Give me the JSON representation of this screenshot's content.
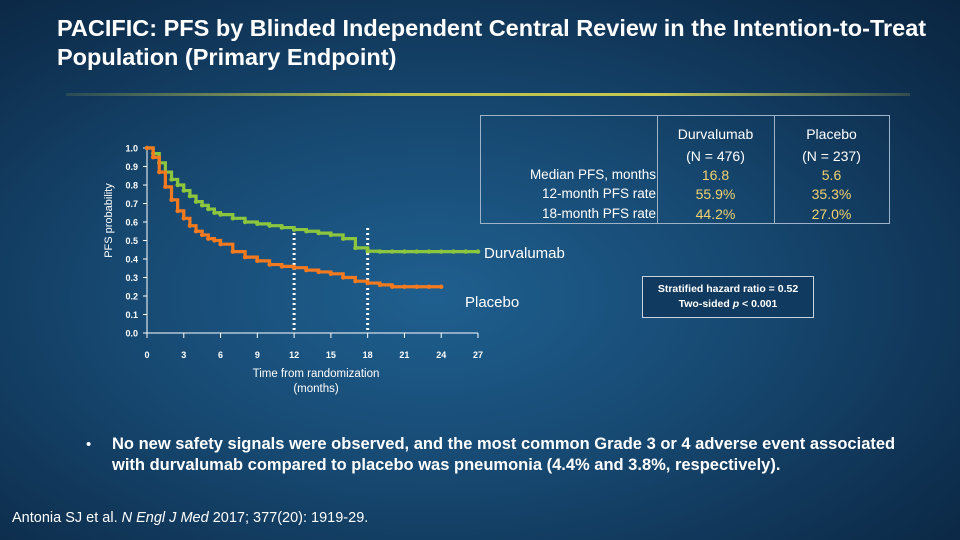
{
  "title": "PACIFIC: PFS by Blinded Independent Central Review in the Intention-to-Treat Population (Primary Endpoint)",
  "table": {
    "headers": [
      {
        "lines": [
          "Durvalumab",
          "(N = 476)"
        ]
      },
      {
        "lines": [
          "Placebo",
          "(N = 237)"
        ]
      }
    ],
    "rows": [
      {
        "label": "Median PFS, months",
        "durvalumab": "16.8",
        "placebo": "5.6"
      },
      {
        "label": "12-month PFS rate",
        "durvalumab": "55.9%",
        "placebo": "35.3%"
      },
      {
        "label": "18-month PFS rate",
        "durvalumab": "44.2%",
        "placebo": "27.0%"
      }
    ]
  },
  "hazard": {
    "line1": "Stratified hazard ratio = 0.52",
    "line2_prefix": "Two-sided ",
    "line2_italic": "p",
    "line2_suffix": " < 0.001"
  },
  "bullet": {
    "mark": "•",
    "text": "No new safety signals were observed, and the most common Grade 3 or 4 adverse event associated with durvalumab compared to placebo was pneumonia (4.4% and 3.8%, respectively)."
  },
  "citation": {
    "authors": "Antonia SJ et al. ",
    "journal": "N Engl J Med",
    "details": " 2017; 377(20): 1919-29."
  },
  "colors": {
    "durvalumab": "#8cc63f",
    "placebo": "#f47a20",
    "axis": "#ffffff",
    "reference_lines": "#ffffff",
    "table_values": "#f1d36f"
  },
  "chart_data": {
    "type": "line",
    "subtype": "kaplan-meier step",
    "ylabel": "PFS probability",
    "xlabel_lines": [
      "Time from randomization",
      "(months)"
    ],
    "xlim": [
      0,
      27
    ],
    "ylim": [
      0,
      1
    ],
    "x_ticks": [
      0,
      3,
      6,
      9,
      12,
      15,
      18,
      21,
      24,
      27
    ],
    "y_ticks": [
      "0.0",
      "0.1",
      "0.2",
      "0.3",
      "0.4",
      "0.5",
      "0.6",
      "0.7",
      "0.8",
      "0.9",
      "1.0"
    ],
    "reference_lines_x": [
      12,
      18
    ],
    "series": [
      {
        "name": "Durvalumab",
        "color": "#8cc63f",
        "points": [
          [
            0,
            1.0
          ],
          [
            0.5,
            0.97
          ],
          [
            1,
            0.92
          ],
          [
            1.5,
            0.87
          ],
          [
            2,
            0.83
          ],
          [
            2.5,
            0.8
          ],
          [
            3,
            0.77
          ],
          [
            3.5,
            0.74
          ],
          [
            4,
            0.71
          ],
          [
            4.5,
            0.69
          ],
          [
            5,
            0.67
          ],
          [
            5.5,
            0.65
          ],
          [
            6,
            0.64
          ],
          [
            7,
            0.62
          ],
          [
            8,
            0.6
          ],
          [
            9,
            0.59
          ],
          [
            10,
            0.58
          ],
          [
            11,
            0.57
          ],
          [
            12,
            0.559
          ],
          [
            13,
            0.55
          ],
          [
            14,
            0.54
          ],
          [
            15,
            0.53
          ],
          [
            16,
            0.51
          ],
          [
            17,
            0.46
          ],
          [
            18,
            0.442
          ],
          [
            19,
            0.44
          ],
          [
            20,
            0.44
          ],
          [
            21,
            0.44
          ],
          [
            22,
            0.44
          ],
          [
            23,
            0.44
          ],
          [
            24,
            0.44
          ],
          [
            25,
            0.44
          ],
          [
            26,
            0.44
          ],
          [
            27,
            0.44
          ]
        ]
      },
      {
        "name": "Placebo",
        "color": "#f47a20",
        "points": [
          [
            0,
            1.0
          ],
          [
            0.5,
            0.95
          ],
          [
            1,
            0.87
          ],
          [
            1.5,
            0.79
          ],
          [
            2,
            0.72
          ],
          [
            2.5,
            0.66
          ],
          [
            3,
            0.62
          ],
          [
            3.5,
            0.58
          ],
          [
            4,
            0.55
          ],
          [
            4.5,
            0.53
          ],
          [
            5,
            0.51
          ],
          [
            5.5,
            0.5
          ],
          [
            6,
            0.48
          ],
          [
            7,
            0.44
          ],
          [
            8,
            0.41
          ],
          [
            9,
            0.39
          ],
          [
            10,
            0.37
          ],
          [
            11,
            0.36
          ],
          [
            12,
            0.353
          ],
          [
            13,
            0.34
          ],
          [
            14,
            0.33
          ],
          [
            15,
            0.32
          ],
          [
            16,
            0.3
          ],
          [
            17,
            0.28
          ],
          [
            18,
            0.27
          ],
          [
            19,
            0.26
          ],
          [
            20,
            0.25
          ],
          [
            21,
            0.25
          ],
          [
            22,
            0.25
          ],
          [
            23,
            0.25
          ],
          [
            24,
            0.25
          ]
        ]
      }
    ],
    "series_labels": [
      "Durvalumab",
      "Placebo"
    ]
  }
}
